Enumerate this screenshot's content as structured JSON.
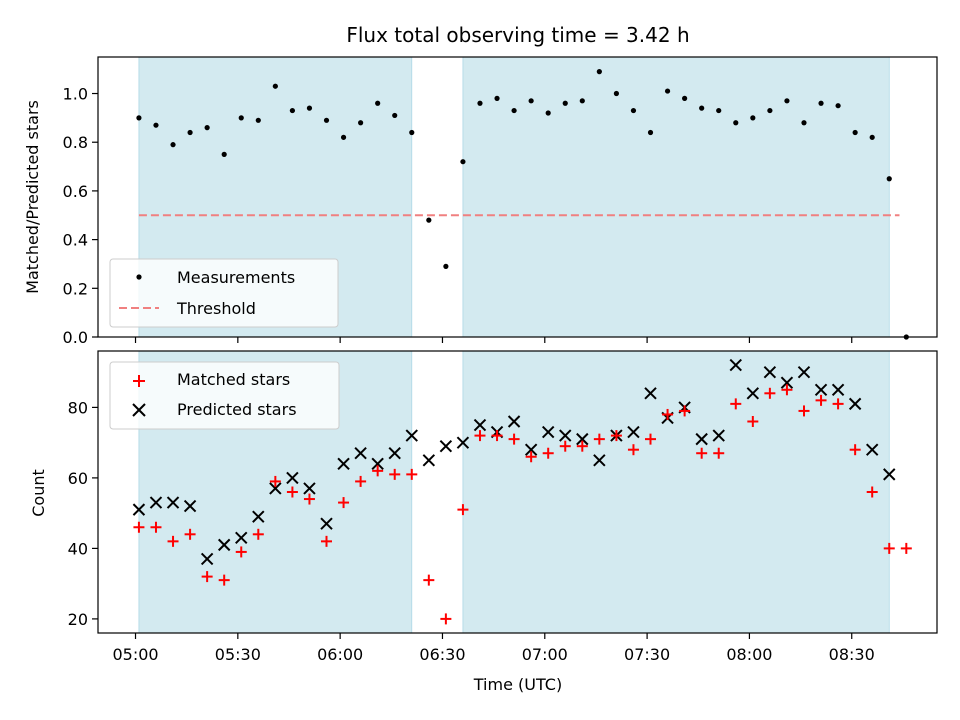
{
  "chart_data": {
    "type": "scatter",
    "title": "Flux total observing time = 3.42 h",
    "xlabel": "Time (UTC)",
    "x_tick_labels": [
      "05:00",
      "05:30",
      "06:00",
      "06:30",
      "07:00",
      "07:30",
      "08:00",
      "08:30"
    ],
    "x_tick_values": [
      "05:00",
      "05:30",
      "06:00",
      "06:30",
      "07:00",
      "07:30",
      "08:00",
      "08:30"
    ],
    "x_range": [
      "04:49",
      "08:55"
    ],
    "shaded_intervals": [
      [
        "05:01",
        "06:21"
      ],
      [
        "06:36",
        "08:41"
      ]
    ],
    "shade_color": "#d3eaf0",
    "top": {
      "ylabel": "Matched/Predicted stars",
      "ylim": [
        0,
        1.15
      ],
      "y_ticks": [
        "0.0",
        "0.2",
        "0.4",
        "0.6",
        "0.8",
        "1.0"
      ],
      "threshold": 0.5,
      "threshold_x_range": [
        "05:01",
        "08:44"
      ],
      "threshold_color": "#f08080",
      "legend": {
        "position": "lower-left",
        "measurements_label": "Measurements",
        "threshold_label": "Threshold"
      },
      "measurements": {
        "x": [
          "05:01",
          "05:06",
          "05:11",
          "05:16",
          "05:21",
          "05:26",
          "05:31",
          "05:36",
          "05:41",
          "05:46",
          "05:51",
          "05:56",
          "06:01",
          "06:06",
          "06:11",
          "06:16",
          "06:21",
          "06:26",
          "06:31",
          "06:36",
          "06:41",
          "06:46",
          "06:51",
          "06:56",
          "07:01",
          "07:06",
          "07:11",
          "07:16",
          "07:21",
          "07:26",
          "07:31",
          "07:36",
          "07:41",
          "07:46",
          "07:51",
          "07:56",
          "08:01",
          "08:06",
          "08:11",
          "08:16",
          "08:21",
          "08:26",
          "08:31",
          "08:36",
          "08:41",
          "08:46"
        ],
        "y": [
          0.9,
          0.87,
          0.79,
          0.84,
          0.86,
          0.75,
          0.9,
          0.89,
          1.03,
          0.93,
          0.94,
          0.89,
          0.82,
          0.88,
          0.96,
          0.91,
          0.84,
          0.48,
          0.29,
          0.72,
          0.96,
          0.98,
          0.93,
          0.97,
          0.92,
          0.96,
          0.97,
          1.09,
          1.0,
          0.93,
          0.84,
          1.01,
          0.98,
          0.94,
          0.93,
          0.88,
          0.9,
          0.93,
          0.97,
          0.88,
          0.96,
          0.95,
          0.84,
          0.82,
          0.65,
          0.0
        ]
      }
    },
    "bottom": {
      "ylabel": "Count",
      "ylim": [
        16,
        96
      ],
      "y_ticks": [
        "20",
        "40",
        "60",
        "80"
      ],
      "legend": {
        "position": "top-left",
        "matched_label": "Matched stars",
        "predicted_label": "Predicted stars"
      },
      "matched": {
        "x": [
          "05:01",
          "05:06",
          "05:11",
          "05:16",
          "05:21",
          "05:26",
          "05:31",
          "05:36",
          "05:41",
          "05:46",
          "05:51",
          "05:56",
          "06:01",
          "06:06",
          "06:11",
          "06:16",
          "06:21",
          "06:26",
          "06:31",
          "06:36",
          "06:41",
          "06:46",
          "06:51",
          "06:56",
          "07:01",
          "07:06",
          "07:11",
          "07:16",
          "07:21",
          "07:26",
          "07:31",
          "07:36",
          "07:41",
          "07:46",
          "07:51",
          "07:56",
          "08:01",
          "08:06",
          "08:11",
          "08:16",
          "08:21",
          "08:26",
          "08:31",
          "08:36",
          "08:41",
          "08:46"
        ],
        "y": [
          46,
          46,
          42,
          44,
          32,
          31,
          39,
          44,
          59,
          56,
          54,
          42,
          53,
          59,
          62,
          61,
          61,
          31,
          20,
          51,
          72,
          72,
          71,
          66,
          67,
          69,
          69,
          71,
          72,
          68,
          71,
          78,
          79,
          67,
          67,
          81,
          76,
          84,
          85,
          79,
          82,
          81,
          68,
          56,
          40,
          40
        ]
      },
      "predicted": {
        "x": [
          "05:01",
          "05:06",
          "05:11",
          "05:16",
          "05:21",
          "05:26",
          "05:31",
          "05:36",
          "05:41",
          "05:46",
          "05:51",
          "05:56",
          "06:01",
          "06:06",
          "06:11",
          "06:16",
          "06:21",
          "06:26",
          "06:31",
          "06:36",
          "06:41",
          "06:46",
          "06:51",
          "06:56",
          "07:01",
          "07:06",
          "07:11",
          "07:16",
          "07:21",
          "07:26",
          "07:31",
          "07:36",
          "07:41",
          "07:46",
          "07:51",
          "07:56",
          "08:01",
          "08:06",
          "08:11",
          "08:16",
          "08:21",
          "08:26",
          "08:31",
          "08:36",
          "08:41"
        ],
        "y": [
          51,
          53,
          53,
          52,
          37,
          41,
          43,
          49,
          57,
          60,
          57,
          47,
          64,
          67,
          64,
          67,
          72,
          65,
          69,
          70,
          75,
          73,
          76,
          68,
          73,
          72,
          71,
          65,
          72,
          73,
          84,
          77,
          80,
          71,
          72,
          92,
          84,
          90,
          87,
          90,
          85,
          85,
          81,
          68,
          61
        ]
      },
      "matched_color": "#ff0000",
      "predicted_color": "#000000"
    }
  }
}
